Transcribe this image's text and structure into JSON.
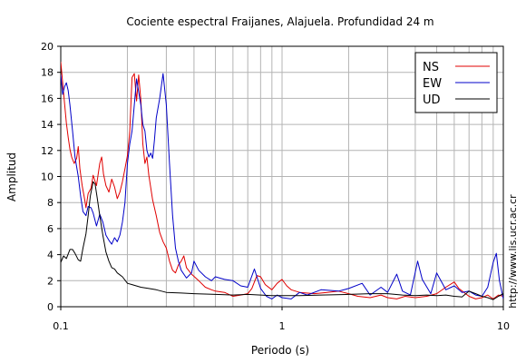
{
  "chart_data": {
    "type": "line",
    "title": "Cociente espectral Fraijanes, Alajuela. Profundidad 24 m",
    "xlabel": "Periodo (s)",
    "ylabel": "Amplitud",
    "xscale": "log",
    "xlim": [
      0.1,
      10
    ],
    "ylim": [
      0,
      20
    ],
    "xticks": [
      {
        "value": 0.1,
        "label": "0.1"
      },
      {
        "value": 1,
        "label": "1"
      },
      {
        "value": 10,
        "label": "10"
      }
    ],
    "yticks": [
      {
        "value": 0,
        "label": "0"
      },
      {
        "value": 2,
        "label": "2"
      },
      {
        "value": 4,
        "label": "4"
      },
      {
        "value": 6,
        "label": "6"
      },
      {
        "value": 8,
        "label": "8"
      },
      {
        "value": 10,
        "label": "10"
      },
      {
        "value": 12,
        "label": "12"
      },
      {
        "value": 14,
        "label": "14"
      },
      {
        "value": 16,
        "label": "16"
      },
      {
        "value": 18,
        "label": "18"
      },
      {
        "value": 20,
        "label": "20"
      }
    ],
    "grid": true,
    "legend_position": "top-right",
    "watermark": "http://www.lis.ucr.ac.cr",
    "series": [
      {
        "name": "NS",
        "color": "#e00000",
        "points": [
          [
            0.1,
            18.8
          ],
          [
            0.102,
            17.2
          ],
          [
            0.104,
            15.6
          ],
          [
            0.106,
            14.1
          ],
          [
            0.108,
            13.0
          ],
          [
            0.11,
            12.1
          ],
          [
            0.112,
            11.5
          ],
          [
            0.115,
            11.0
          ],
          [
            0.118,
            11.4
          ],
          [
            0.12,
            12.3
          ],
          [
            0.122,
            10.6
          ],
          [
            0.125,
            9.3
          ],
          [
            0.128,
            8.3
          ],
          [
            0.13,
            7.6
          ],
          [
            0.133,
            8.7
          ],
          [
            0.137,
            9.1
          ],
          [
            0.14,
            10.1
          ],
          [
            0.145,
            9.3
          ],
          [
            0.15,
            11.0
          ],
          [
            0.153,
            11.5
          ],
          [
            0.156,
            10.2
          ],
          [
            0.16,
            9.3
          ],
          [
            0.165,
            8.8
          ],
          [
            0.17,
            9.8
          ],
          [
            0.175,
            9.2
          ],
          [
            0.18,
            8.3
          ],
          [
            0.185,
            8.8
          ],
          [
            0.19,
            9.6
          ],
          [
            0.195,
            10.6
          ],
          [
            0.2,
            11.6
          ],
          [
            0.205,
            13.5
          ],
          [
            0.21,
            17.6
          ],
          [
            0.215,
            17.9
          ],
          [
            0.22,
            15.8
          ],
          [
            0.225,
            17.8
          ],
          [
            0.23,
            15.9
          ],
          [
            0.235,
            12.5
          ],
          [
            0.24,
            11.0
          ],
          [
            0.245,
            11.5
          ],
          [
            0.25,
            10.1
          ],
          [
            0.26,
            8.2
          ],
          [
            0.27,
            7.0
          ],
          [
            0.28,
            5.7
          ],
          [
            0.29,
            5.0
          ],
          [
            0.3,
            4.5
          ],
          [
            0.31,
            3.5
          ],
          [
            0.32,
            2.8
          ],
          [
            0.33,
            2.6
          ],
          [
            0.34,
            3.2
          ],
          [
            0.35,
            3.5
          ],
          [
            0.36,
            3.9
          ],
          [
            0.37,
            3.0
          ],
          [
            0.39,
            2.5
          ],
          [
            0.42,
            2.0
          ],
          [
            0.45,
            1.5
          ],
          [
            0.48,
            1.3
          ],
          [
            0.5,
            1.2
          ],
          [
            0.55,
            1.1
          ],
          [
            0.6,
            0.8
          ],
          [
            0.65,
            0.9
          ],
          [
            0.7,
            1.0
          ],
          [
            0.73,
            1.4
          ],
          [
            0.77,
            2.4
          ],
          [
            0.8,
            2.3
          ],
          [
            0.84,
            1.7
          ],
          [
            0.9,
            1.3
          ],
          [
            0.95,
            1.8
          ],
          [
            1.0,
            2.1
          ],
          [
            1.05,
            1.6
          ],
          [
            1.1,
            1.3
          ],
          [
            1.2,
            1.1
          ],
          [
            1.4,
            1.0
          ],
          [
            1.6,
            1.1
          ],
          [
            1.8,
            1.2
          ],
          [
            2.0,
            1.0
          ],
          [
            2.2,
            0.8
          ],
          [
            2.5,
            0.7
          ],
          [
            2.8,
            0.9
          ],
          [
            3.0,
            0.7
          ],
          [
            3.3,
            0.6
          ],
          [
            3.6,
            0.8
          ],
          [
            4.0,
            0.7
          ],
          [
            4.5,
            0.8
          ],
          [
            5.0,
            1.0
          ],
          [
            5.5,
            1.5
          ],
          [
            6.0,
            1.9
          ],
          [
            6.3,
            1.4
          ],
          [
            7.0,
            0.8
          ],
          [
            7.5,
            0.6
          ],
          [
            8.0,
            0.7
          ],
          [
            8.5,
            0.9
          ],
          [
            9.0,
            0.6
          ],
          [
            9.5,
            0.9
          ],
          [
            10.0,
            0.8
          ]
        ]
      },
      {
        "name": "EW",
        "color": "#0000c8",
        "points": [
          [
            0.1,
            17.8
          ],
          [
            0.102,
            16.3
          ],
          [
            0.104,
            16.9
          ],
          [
            0.106,
            17.2
          ],
          [
            0.108,
            16.6
          ],
          [
            0.11,
            15.5
          ],
          [
            0.113,
            13.5
          ],
          [
            0.116,
            11.5
          ],
          [
            0.12,
            10.0
          ],
          [
            0.123,
            8.5
          ],
          [
            0.126,
            7.3
          ],
          [
            0.13,
            7.0
          ],
          [
            0.133,
            7.7
          ],
          [
            0.137,
            7.6
          ],
          [
            0.14,
            7.2
          ],
          [
            0.145,
            6.2
          ],
          [
            0.15,
            7.1
          ],
          [
            0.155,
            6.5
          ],
          [
            0.16,
            5.5
          ],
          [
            0.165,
            5.1
          ],
          [
            0.17,
            4.8
          ],
          [
            0.175,
            5.3
          ],
          [
            0.18,
            5.0
          ],
          [
            0.185,
            5.5
          ],
          [
            0.19,
            6.5
          ],
          [
            0.195,
            8.0
          ],
          [
            0.2,
            11.0
          ],
          [
            0.205,
            12.5
          ],
          [
            0.21,
            13.5
          ],
          [
            0.215,
            15.5
          ],
          [
            0.22,
            17.5
          ],
          [
            0.225,
            16.5
          ],
          [
            0.23,
            15.5
          ],
          [
            0.235,
            14.0
          ],
          [
            0.24,
            13.5
          ],
          [
            0.245,
            12.0
          ],
          [
            0.25,
            11.5
          ],
          [
            0.255,
            11.8
          ],
          [
            0.26,
            11.4
          ],
          [
            0.265,
            12.8
          ],
          [
            0.27,
            14.5
          ],
          [
            0.28,
            16.0
          ],
          [
            0.29,
            17.9
          ],
          [
            0.3,
            15.5
          ],
          [
            0.31,
            11.0
          ],
          [
            0.32,
            7.0
          ],
          [
            0.33,
            4.5
          ],
          [
            0.34,
            3.5
          ],
          [
            0.35,
            2.8
          ],
          [
            0.37,
            2.2
          ],
          [
            0.39,
            2.6
          ],
          [
            0.4,
            3.5
          ],
          [
            0.42,
            2.8
          ],
          [
            0.45,
            2.3
          ],
          [
            0.48,
            2.0
          ],
          [
            0.5,
            2.3
          ],
          [
            0.55,
            2.1
          ],
          [
            0.6,
            2.0
          ],
          [
            0.65,
            1.6
          ],
          [
            0.7,
            1.5
          ],
          [
            0.75,
            2.9
          ],
          [
            0.8,
            1.4
          ],
          [
            0.85,
            0.8
          ],
          [
            0.9,
            0.6
          ],
          [
            0.95,
            0.9
          ],
          [
            1.0,
            0.7
          ],
          [
            1.1,
            0.6
          ],
          [
            1.2,
            1.1
          ],
          [
            1.3,
            0.9
          ],
          [
            1.5,
            1.3
          ],
          [
            1.8,
            1.2
          ],
          [
            2.0,
            1.4
          ],
          [
            2.3,
            1.8
          ],
          [
            2.5,
            0.9
          ],
          [
            2.8,
            1.5
          ],
          [
            3.0,
            1.1
          ],
          [
            3.3,
            2.5
          ],
          [
            3.5,
            1.2
          ],
          [
            3.8,
            0.9
          ],
          [
            4.1,
            3.5
          ],
          [
            4.3,
            2.1
          ],
          [
            4.7,
            1.0
          ],
          [
            5.0,
            2.6
          ],
          [
            5.5,
            1.3
          ],
          [
            6.0,
            1.6
          ],
          [
            6.5,
            1.1
          ],
          [
            7.0,
            1.2
          ],
          [
            7.5,
            0.9
          ],
          [
            8.0,
            0.8
          ],
          [
            8.5,
            1.5
          ],
          [
            9.0,
            3.4
          ],
          [
            9.3,
            4.1
          ],
          [
            9.6,
            2.0
          ],
          [
            10.0,
            0.6
          ]
        ]
      },
      {
        "name": "UD",
        "color": "#000000",
        "points": [
          [
            0.1,
            3.4
          ],
          [
            0.103,
            3.9
          ],
          [
            0.106,
            3.7
          ],
          [
            0.11,
            4.4
          ],
          [
            0.113,
            4.4
          ],
          [
            0.116,
            4.1
          ],
          [
            0.12,
            3.6
          ],
          [
            0.123,
            3.5
          ],
          [
            0.126,
            4.5
          ],
          [
            0.13,
            5.6
          ],
          [
            0.133,
            7.0
          ],
          [
            0.136,
            8.5
          ],
          [
            0.14,
            9.6
          ],
          [
            0.143,
            9.4
          ],
          [
            0.146,
            8.4
          ],
          [
            0.15,
            7.0
          ],
          [
            0.155,
            5.5
          ],
          [
            0.16,
            4.2
          ],
          [
            0.165,
            3.5
          ],
          [
            0.17,
            3.0
          ],
          [
            0.175,
            2.9
          ],
          [
            0.18,
            2.6
          ],
          [
            0.19,
            2.3
          ],
          [
            0.2,
            1.8
          ],
          [
            0.21,
            1.7
          ],
          [
            0.23,
            1.5
          ],
          [
            0.25,
            1.4
          ],
          [
            0.27,
            1.3
          ],
          [
            0.3,
            1.1
          ],
          [
            0.35,
            1.05
          ],
          [
            0.4,
            1.0
          ],
          [
            0.5,
            0.95
          ],
          [
            0.6,
            0.9
          ],
          [
            0.7,
            0.95
          ],
          [
            0.8,
            0.9
          ],
          [
            0.9,
            0.85
          ],
          [
            1.0,
            0.85
          ],
          [
            1.2,
            0.85
          ],
          [
            1.5,
            0.9
          ],
          [
            2.0,
            0.95
          ],
          [
            2.5,
            1.0
          ],
          [
            3.0,
            1.0
          ],
          [
            3.5,
            0.9
          ],
          [
            4.0,
            0.85
          ],
          [
            4.5,
            0.9
          ],
          [
            5.0,
            0.85
          ],
          [
            5.5,
            0.9
          ],
          [
            6.0,
            0.8
          ],
          [
            6.5,
            0.75
          ],
          [
            7.0,
            1.2
          ],
          [
            7.5,
            1.0
          ],
          [
            8.0,
            0.8
          ],
          [
            8.5,
            0.7
          ],
          [
            9.0,
            0.55
          ],
          [
            9.5,
            0.8
          ],
          [
            10.0,
            1.0
          ]
        ]
      }
    ]
  }
}
